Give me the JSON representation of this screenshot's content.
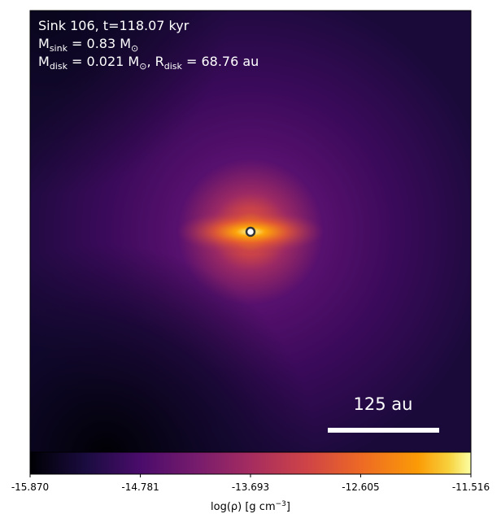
{
  "chart_data": {
    "type": "density-map",
    "annotations": [
      [
        "Sink 106, t=118.07 kyr"
      ],
      [
        "M",
        "sink",
        " = 0.83 M",
        "⊙"
      ],
      [
        "M",
        "disk",
        " = 0.021 M",
        "⊙",
        ", R",
        "disk",
        " = 68.76 au"
      ]
    ],
    "scale_bar_label": "125 au",
    "colormap": "inferno",
    "colorbar_label": [
      "log(ρ) [g cm",
      "−3",
      "]"
    ],
    "clim": [
      -15.87,
      -11.516
    ],
    "cticks": [
      {
        "value": -15.87,
        "label": "-15.870"
      },
      -14.781,
      -13.693,
      -12.605,
      -11.516
    ]
  }
}
